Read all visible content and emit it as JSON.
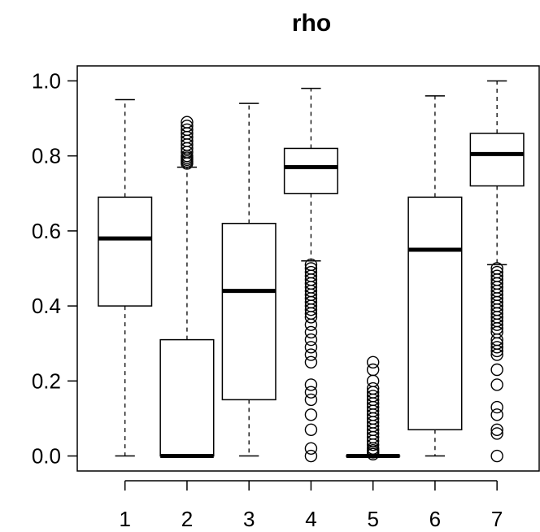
{
  "chart_data": {
    "type": "boxplot",
    "title": "rho",
    "xlabel": "",
    "ylabel": "",
    "ylim": [
      -0.04,
      1.04
    ],
    "yticks": [
      0.0,
      0.2,
      0.4,
      0.6,
      0.8,
      1.0
    ],
    "y_tick_labels": [
      "0.0",
      "0.2",
      "0.4",
      "0.6",
      "0.8",
      "1.0"
    ],
    "categories": [
      "1",
      "2",
      "3",
      "4",
      "5",
      "6",
      "7"
    ],
    "boxes": [
      {
        "label": "1",
        "whisker_low": 0.0,
        "q1": 0.4,
        "median": 0.58,
        "q3": 0.69,
        "whisker_high": 0.95,
        "outliers": []
      },
      {
        "label": "2",
        "whisker_low": 0.0,
        "q1": 0.0,
        "median": 0.0,
        "q3": 0.31,
        "whisker_high": 0.77,
        "outliers": [
          0.78,
          0.785,
          0.79,
          0.795,
          0.8,
          0.81,
          0.82,
          0.83,
          0.84,
          0.85,
          0.86,
          0.87,
          0.88,
          0.89
        ]
      },
      {
        "label": "3",
        "whisker_low": 0.0,
        "q1": 0.15,
        "median": 0.44,
        "q3": 0.62,
        "whisker_high": 0.94,
        "outliers": []
      },
      {
        "label": "4",
        "whisker_low": 0.52,
        "q1": 0.7,
        "median": 0.77,
        "q3": 0.82,
        "whisker_high": 0.98,
        "outliers": [
          0.51,
          0.5,
          0.49,
          0.48,
          0.47,
          0.46,
          0.45,
          0.44,
          0.43,
          0.42,
          0.41,
          0.4,
          0.39,
          0.38,
          0.37,
          0.35,
          0.33,
          0.31,
          0.29,
          0.27,
          0.25,
          0.19,
          0.17,
          0.15,
          0.11,
          0.07,
          0.02,
          0.0
        ]
      },
      {
        "label": "5",
        "whisker_low": 0.0,
        "q1": 0.0,
        "median": 0.0,
        "q3": 0.0,
        "whisker_high": 0.0,
        "outliers": [
          0.005,
          0.01,
          0.015,
          0.02,
          0.03,
          0.04,
          0.05,
          0.06,
          0.07,
          0.08,
          0.09,
          0.1,
          0.11,
          0.12,
          0.13,
          0.14,
          0.15,
          0.16,
          0.17,
          0.18,
          0.2,
          0.23,
          0.25
        ]
      },
      {
        "label": "6",
        "whisker_low": 0.0,
        "q1": 0.07,
        "median": 0.55,
        "q3": 0.69,
        "whisker_high": 0.96,
        "outliers": []
      },
      {
        "label": "7",
        "whisker_low": 0.51,
        "q1": 0.72,
        "median": 0.805,
        "q3": 0.86,
        "whisker_high": 1.0,
        "outliers": [
          0.5,
          0.49,
          0.48,
          0.47,
          0.46,
          0.45,
          0.44,
          0.43,
          0.42,
          0.41,
          0.4,
          0.39,
          0.38,
          0.37,
          0.36,
          0.35,
          0.34,
          0.33,
          0.31,
          0.3,
          0.29,
          0.28,
          0.27,
          0.23,
          0.19,
          0.13,
          0.11,
          0.07,
          0.06,
          0.0
        ]
      }
    ],
    "grid": false,
    "legend": "none"
  }
}
